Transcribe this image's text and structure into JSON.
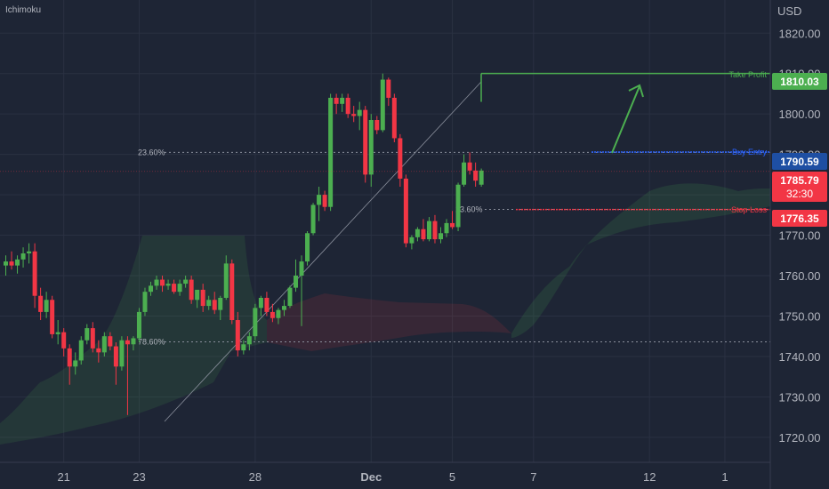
{
  "indicator_label": "Ichimoku",
  "currency": "USD",
  "chart_data": {
    "type": "candlestick",
    "y_ticks": [
      1720,
      1730,
      1740,
      1750,
      1760,
      1770,
      1780,
      1790,
      1800,
      1810,
      1820
    ],
    "y_tick_labels": [
      "1720.00",
      "1730.00",
      "1740.00",
      "1750.00",
      "1760.00",
      "1770.00",
      "1780.00",
      "1790.00",
      "1800.00",
      "1810.00",
      "1820.00"
    ],
    "ylim": [
      1713.8,
      1828.2
    ],
    "x_labels": [
      {
        "label": "21",
        "bar": 10
      },
      {
        "label": "23",
        "bar": 23
      },
      {
        "label": "28",
        "bar": 43
      },
      {
        "label": "Dec",
        "bar": 63
      },
      {
        "label": "5",
        "bar": 77
      },
      {
        "label": "7",
        "bar": 91
      },
      {
        "label": "12",
        "bar": 111
      },
      {
        "label": "1",
        "bar": 124
      }
    ],
    "candles": [
      [
        1762.5,
        1765.0,
        1760.0,
        1763.5
      ],
      [
        1763.5,
        1766.0,
        1761.5,
        1762.5
      ],
      [
        1762.5,
        1765.0,
        1760.5,
        1764.0
      ],
      [
        1764.0,
        1767.0,
        1762.0,
        1765.5
      ],
      [
        1765.5,
        1768.0,
        1763.0,
        1766.0
      ],
      [
        1766.0,
        1768.0,
        1752.0,
        1755.0
      ],
      [
        1755.0,
        1757.0,
        1749.0,
        1751.0
      ],
      [
        1751.0,
        1756.0,
        1749.5,
        1754.0
      ],
      [
        1754.0,
        1755.0,
        1744.5,
        1745.5
      ],
      [
        1745.5,
        1749.0,
        1743.0,
        1746.0
      ],
      [
        1746.0,
        1747.0,
        1740.0,
        1742.0
      ],
      [
        1742.0,
        1743.0,
        1733.0,
        1737.5
      ],
      [
        1737.5,
        1741.0,
        1735.5,
        1739.0
      ],
      [
        1739.0,
        1745.0,
        1738.0,
        1744.0
      ],
      [
        1744.0,
        1748.0,
        1743.0,
        1747.0
      ],
      [
        1747.0,
        1748.5,
        1741.0,
        1742.0
      ],
      [
        1742.0,
        1744.0,
        1738.5,
        1741.0
      ],
      [
        1741.0,
        1746.0,
        1740.0,
        1745.0
      ],
      [
        1745.0,
        1746.0,
        1741.5,
        1742.5
      ],
      [
        1742.5,
        1743.5,
        1733.0,
        1737.5
      ],
      [
        1737.5,
        1745.0,
        1736.5,
        1744.0
      ],
      [
        1744.0,
        1745.0,
        1725.5,
        1743.0
      ],
      [
        1743.0,
        1745.0,
        1741.5,
        1744.5
      ],
      [
        1744.5,
        1752.0,
        1743.5,
        1751.0
      ],
      [
        1751.0,
        1757.0,
        1750.0,
        1756.0
      ],
      [
        1756.0,
        1758.5,
        1755.0,
        1757.5
      ],
      [
        1757.5,
        1760.0,
        1756.5,
        1759.0
      ],
      [
        1759.0,
        1760.0,
        1756.0,
        1757.5
      ],
      [
        1757.5,
        1759.0,
        1756.5,
        1758.0
      ],
      [
        1758.0,
        1759.0,
        1755.5,
        1756.0
      ],
      [
        1756.0,
        1759.0,
        1755.0,
        1758.0
      ],
      [
        1758.0,
        1760.0,
        1757.0,
        1759.0
      ],
      [
        1759.0,
        1760.0,
        1753.0,
        1754.0
      ],
      [
        1754.0,
        1756.0,
        1752.0,
        1756.5
      ],
      [
        1756.5,
        1758.0,
        1751.0,
        1752.5
      ],
      [
        1752.5,
        1755.0,
        1751.5,
        1754.0
      ],
      [
        1754.0,
        1756.0,
        1750.5,
        1751.5
      ],
      [
        1751.5,
        1755.0,
        1749.0,
        1754.5
      ],
      [
        1754.5,
        1765.0,
        1754.0,
        1763.0
      ],
      [
        1763.0,
        1764.0,
        1748.0,
        1749.0
      ],
      [
        1749.0,
        1751.0,
        1740.0,
        1741.5
      ],
      [
        1741.5,
        1744.0,
        1740.5,
        1743.0
      ],
      [
        1743.0,
        1746.0,
        1741.5,
        1745.0
      ],
      [
        1745.0,
        1753.0,
        1744.0,
        1752.0
      ],
      [
        1752.0,
        1755.0,
        1750.0,
        1754.5
      ],
      [
        1754.5,
        1756.0,
        1750.0,
        1751.0
      ],
      [
        1751.0,
        1753.0,
        1748.5,
        1749.5
      ],
      [
        1749.5,
        1752.0,
        1748.0,
        1751.5
      ],
      [
        1751.5,
        1754.0,
        1750.0,
        1752.5
      ],
      [
        1752.5,
        1757.5,
        1752.0,
        1757.0
      ],
      [
        1757.0,
        1764.0,
        1756.0,
        1760.0
      ],
      [
        1760.0,
        1765.0,
        1747.5,
        1763.5
      ],
      [
        1763.5,
        1771.0,
        1762.5,
        1770.5
      ],
      [
        1770.5,
        1778.0,
        1770.0,
        1777.5
      ],
      [
        1777.5,
        1782.0,
        1773.5,
        1780.0
      ],
      [
        1780.0,
        1781.0,
        1776.0,
        1777.0
      ],
      [
        1777.0,
        1805.0,
        1776.0,
        1804.0
      ],
      [
        1804.0,
        1805.0,
        1800.0,
        1802.5
      ],
      [
        1802.5,
        1805.0,
        1800.5,
        1804.0
      ],
      [
        1804.0,
        1805.0,
        1799.0,
        1800.0
      ],
      [
        1800.0,
        1802.0,
        1798.0,
        1799.5
      ],
      [
        1799.5,
        1803.0,
        1796.0,
        1801.0
      ],
      [
        1801.0,
        1802.0,
        1783.0,
        1785.0
      ],
      [
        1785.0,
        1800.0,
        1782.0,
        1798.5
      ],
      [
        1798.5,
        1799.5,
        1795.0,
        1796.0
      ],
      [
        1796.0,
        1810.0,
        1795.5,
        1808.5
      ],
      [
        1808.5,
        1809.0,
        1802.0,
        1804.0
      ],
      [
        1804.0,
        1805.0,
        1793.0,
        1794.0
      ],
      [
        1794.0,
        1795.0,
        1782.0,
        1784.0
      ],
      [
        1784.0,
        1785.0,
        1767.0,
        1768.0
      ],
      [
        1768.0,
        1770.0,
        1766.5,
        1769.5
      ],
      [
        1769.5,
        1772.0,
        1768.5,
        1771.5
      ],
      [
        1771.5,
        1774.0,
        1768.5,
        1769.0
      ],
      [
        1769.0,
        1774.5,
        1768.5,
        1773.5
      ],
      [
        1773.5,
        1775.0,
        1768.0,
        1769.0
      ],
      [
        1769.0,
        1772.0,
        1768.0,
        1770.5
      ],
      [
        1770.5,
        1774.0,
        1769.5,
        1773.0
      ],
      [
        1773.0,
        1776.0,
        1771.5,
        1772.0
      ],
      [
        1772.0,
        1783.0,
        1771.0,
        1782.5
      ],
      [
        1782.5,
        1790.0,
        1782.0,
        1788.0
      ],
      [
        1788.0,
        1790.5,
        1785.0,
        1786.0
      ],
      [
        1786.0,
        1788.0,
        1782.0,
        1783.5
      ],
      [
        1782.5,
        1786.5,
        1782.0,
        1786.0
      ]
    ],
    "levels": {
      "take_profit": {
        "label": "Take Profit",
        "value": "1810.03",
        "y": 1810.03,
        "color": "#4caf50"
      },
      "buy_entry": {
        "label": "Buy Entry",
        "value": "1790.59",
        "y": 1790.59,
        "color": "#2962ff"
      },
      "stop_loss": {
        "label": "Stop Loss",
        "value": "1776.35",
        "y": 1776.35,
        "color": "#f23645"
      },
      "current_price": {
        "value": "1785.79",
        "countdown": "32:30",
        "y": 1785.79,
        "color": "#f23645"
      }
    },
    "fib_labels": [
      {
        "label": "23.60%",
        "y": 1790.5
      },
      {
        "label": "23.60%",
        "y": 1776.4
      },
      {
        "label": "78.60%",
        "y": 1743.6
      }
    ],
    "colors": {
      "up": "#4caf50",
      "down": "#f23645",
      "background": "#1e2535"
    }
  }
}
